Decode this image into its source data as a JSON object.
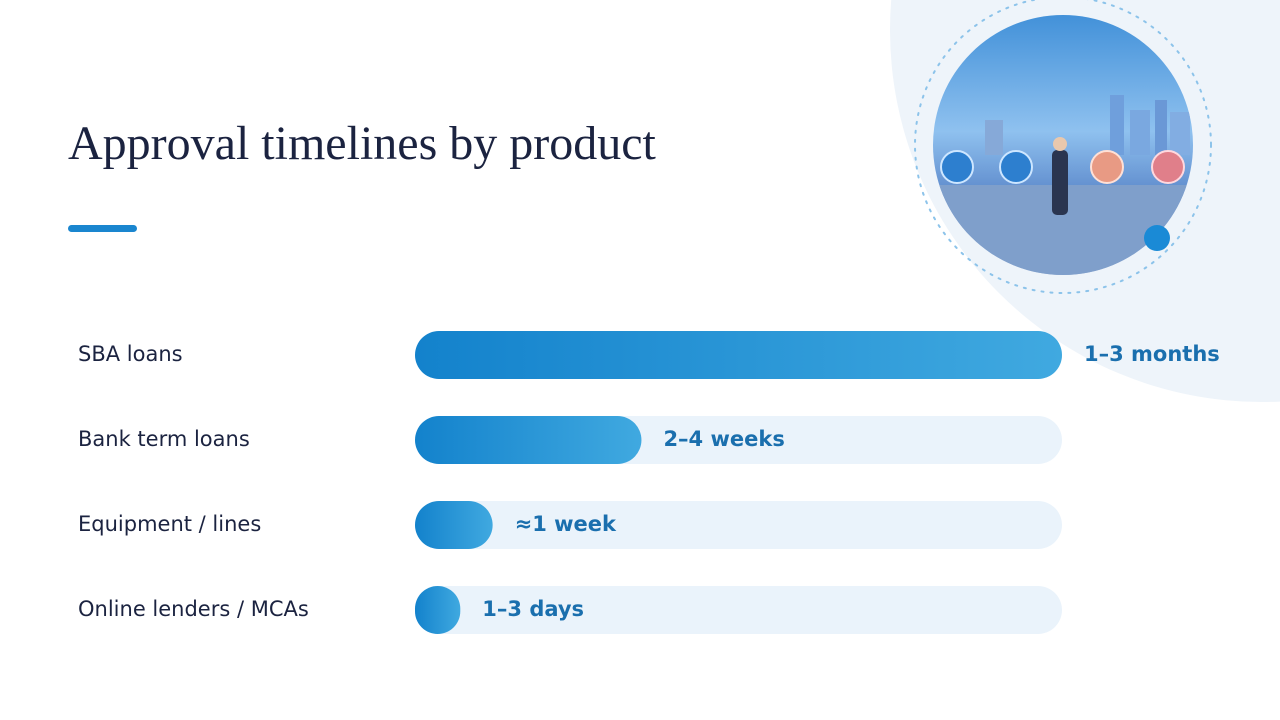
{
  "chart_data": {
    "type": "bar",
    "orientation": "horizontal",
    "title": "Approval timelines by product",
    "categories": [
      "SBA loans",
      "Bank term loans",
      "Equipment / lines",
      "Online lenders / MCAs"
    ],
    "values": [
      100,
      35,
      12,
      7
    ],
    "annotations": [
      "1–3 months",
      "2–4 weeks",
      "≈1 week",
      "1–3 days"
    ],
    "xlim": [
      0,
      100
    ],
    "color": "#1a86cf"
  }
}
